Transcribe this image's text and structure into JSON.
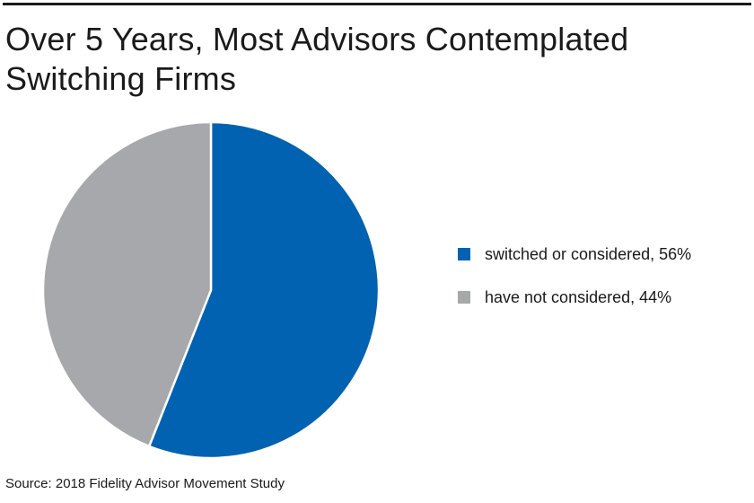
{
  "chart_data": {
    "type": "pie",
    "title": "Over 5 Years, Most Advisors Contemplated Switching Firms",
    "slices": [
      {
        "label": "switched or considered, 56%",
        "value": 56,
        "color": "#0062b1"
      },
      {
        "label": "have not considered, 44%",
        "value": 44,
        "color": "#a7a8ab"
      }
    ],
    "legend_position": "right",
    "source": "Source: 2018 Fidelity Advisor Movement Study"
  }
}
